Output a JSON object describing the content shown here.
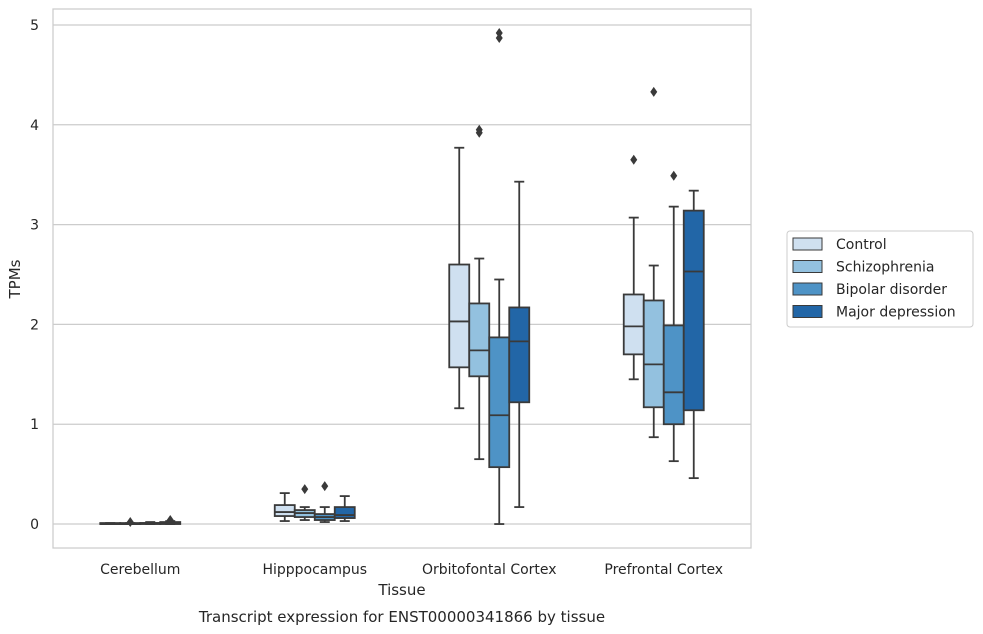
{
  "colors": {
    "Control": "#cfe0f0",
    "Schizophrenia": "#93c1df",
    "Bipolar disorder": "#4e93c6",
    "Major depression": "#2266a7",
    "grid": "#cccccc",
    "edge": "#3a3a3a"
  },
  "chart_data": {
    "type": "box",
    "xlabel": "Tissue",
    "ylabel": "TPMs",
    "caption": "Transcript expression for ENST00000341866 by tissue",
    "ylim": [
      -0.24,
      5.16
    ],
    "yticks": [
      0,
      1,
      2,
      3,
      4,
      5
    ],
    "grid": true,
    "legend_position": "right",
    "categories": [
      "Cerebellum",
      "Hipppocampus",
      "Orbitofontal Cortex",
      "Prefrontal Cortex"
    ],
    "series": [
      {
        "name": "Control",
        "boxes": [
          {
            "whislo": 0.0,
            "q1": 0.0,
            "med": 0.0,
            "q3": 0.01,
            "whishi": 0.01,
            "fliers": []
          },
          {
            "whislo": 0.03,
            "q1": 0.08,
            "med": 0.12,
            "q3": 0.19,
            "whishi": 0.31,
            "fliers": []
          },
          {
            "whislo": 1.16,
            "q1": 1.57,
            "med": 2.03,
            "q3": 2.6,
            "whishi": 3.77,
            "fliers": []
          },
          {
            "whislo": 1.45,
            "q1": 1.7,
            "med": 1.98,
            "q3": 2.3,
            "whishi": 3.07,
            "fliers": [
              3.65
            ]
          }
        ]
      },
      {
        "name": "Schizophrenia",
        "boxes": [
          {
            "whislo": 0.0,
            "q1": 0.0,
            "med": 0.0,
            "q3": 0.01,
            "whishi": 0.01,
            "fliers": [
              0.02
            ]
          },
          {
            "whislo": 0.04,
            "q1": 0.07,
            "med": 0.11,
            "q3": 0.14,
            "whishi": 0.17,
            "fliers": [
              0.35
            ]
          },
          {
            "whislo": 0.65,
            "q1": 1.48,
            "med": 1.74,
            "q3": 2.21,
            "whishi": 2.66,
            "fliers": [
              3.92,
              3.95
            ]
          },
          {
            "whislo": 0.87,
            "q1": 1.17,
            "med": 1.6,
            "q3": 2.24,
            "whishi": 2.59,
            "fliers": [
              4.33
            ]
          }
        ]
      },
      {
        "name": "Bipolar disorder",
        "boxes": [
          {
            "whislo": 0.0,
            "q1": 0.0,
            "med": 0.01,
            "q3": 0.01,
            "whishi": 0.02,
            "fliers": []
          },
          {
            "whislo": 0.02,
            "q1": 0.04,
            "med": 0.07,
            "q3": 0.1,
            "whishi": 0.17,
            "fliers": [
              0.38
            ]
          },
          {
            "whislo": 0.0,
            "q1": 0.57,
            "med": 1.09,
            "q3": 1.87,
            "whishi": 2.45,
            "fliers": [
              4.87,
              4.92
            ]
          },
          {
            "whislo": 0.63,
            "q1": 1.0,
            "med": 1.32,
            "q3": 1.99,
            "whishi": 3.18,
            "fliers": [
              3.49
            ]
          }
        ]
      },
      {
        "name": "Major depression",
        "boxes": [
          {
            "whislo": 0.0,
            "q1": 0.0,
            "med": 0.01,
            "q3": 0.02,
            "whishi": 0.03,
            "fliers": [
              0.04
            ]
          },
          {
            "whislo": 0.03,
            "q1": 0.06,
            "med": 0.09,
            "q3": 0.17,
            "whishi": 0.28,
            "fliers": []
          },
          {
            "whislo": 0.17,
            "q1": 1.22,
            "med": 1.83,
            "q3": 2.17,
            "whishi": 3.43,
            "fliers": []
          },
          {
            "whislo": 0.46,
            "q1": 1.14,
            "med": 2.53,
            "q3": 3.14,
            "whishi": 3.34,
            "fliers": []
          }
        ]
      }
    ]
  }
}
